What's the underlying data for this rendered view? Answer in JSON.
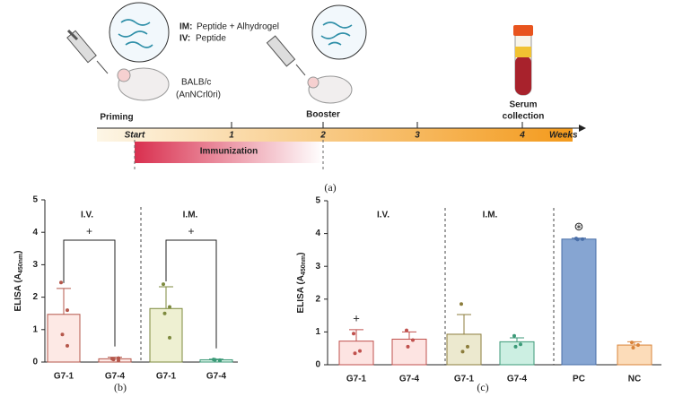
{
  "diagram": {
    "im_key": "IM:",
    "im_text": "Peptide + Alhydrogel",
    "iv_key": "IV:",
    "iv_text": "Peptide",
    "strain": "BALB/c",
    "substrain": "(AnNCrl0ri)",
    "priming": "Priming",
    "booster": "Booster",
    "serum_1": "Serum",
    "serum_2": "collection",
    "timeline": [
      "Start",
      "1",
      "2",
      "3",
      "4"
    ],
    "unit": "Weeks",
    "phase": "Immunization",
    "caption_a": "(a)",
    "caption_b": "(b)",
    "caption_c": "(c)"
  },
  "chart_data": [
    {
      "type": "bar",
      "ylabel": {
        "main": "ELISA (A",
        "sub": "450nm",
        "end": ")"
      },
      "categories": [
        "G7-1",
        "G7-4",
        "G7-1",
        "G7-4"
      ],
      "values": [
        1.47,
        0.1,
        1.65,
        0.07
      ],
      "errors": [
        0.8,
        0.05,
        0.67,
        0.02
      ],
      "points": [
        [
          2.45,
          1.6,
          0.85,
          0.5
        ],
        [
          0.1,
          0.12,
          0.08,
          0.05
        ],
        [
          2.4,
          1.7,
          1.5,
          0.75
        ],
        [
          0.08,
          0.06,
          0.07,
          0.05
        ]
      ],
      "colors": [
        "#fde9e5",
        "#fde9e5",
        "#eef0d2",
        "#d8f1e6"
      ],
      "edge_colors": [
        "#b5574b",
        "#b5574b",
        "#7d8a3e",
        "#3c9a78"
      ],
      "groups": [
        "I.V.",
        "I.M."
      ],
      "annotations": [
        "+",
        "+"
      ],
      "ylim": [
        0,
        5
      ],
      "yticks": [
        0,
        1,
        2,
        3,
        4,
        5
      ]
    },
    {
      "type": "bar",
      "ylabel": {
        "main": "ELISA (A",
        "sub": "450nm",
        "end": ")"
      },
      "categories": [
        "G7-1",
        "G7-4",
        "G7-1",
        "G7-4",
        "PC",
        "NC"
      ],
      "values": [
        0.72,
        0.78,
        0.93,
        0.7,
        3.83,
        0.6
      ],
      "errors": [
        0.35,
        0.22,
        0.6,
        0.12,
        0.03,
        0.1
      ],
      "points": [
        [
          0.95,
          0.42,
          0.35
        ],
        [
          1.05,
          0.75,
          0.55
        ],
        [
          1.85,
          0.55,
          0.4
        ],
        [
          0.88,
          0.62,
          0.55
        ],
        [
          3.85,
          3.83,
          3.82
        ],
        [
          0.68,
          0.6,
          0.52
        ]
      ],
      "colors": [
        "#fde4e2",
        "#fde4e2",
        "#ece9cf",
        "#ccefe2",
        "#86a5d2",
        "#fcdcb9"
      ],
      "edge_colors": [
        "#c0504d",
        "#c0504d",
        "#8c7d3c",
        "#3c9a78",
        "#4a6fa8",
        "#d9843a"
      ],
      "groups": [
        "I.V.",
        "I.M."
      ],
      "annotations": [
        "+",
        "⊛"
      ],
      "ylim": [
        0,
        5
      ],
      "yticks": [
        0,
        1,
        2,
        3,
        4,
        5
      ]
    }
  ]
}
